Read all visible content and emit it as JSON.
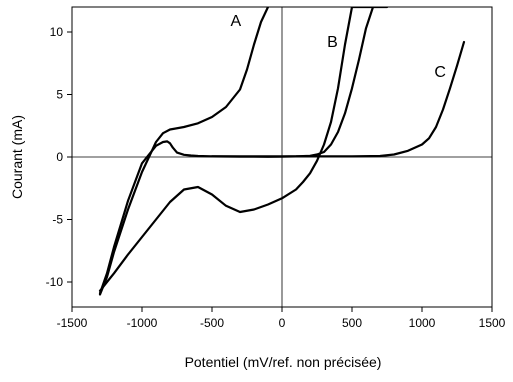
{
  "chart_data": {
    "type": "line",
    "title": "",
    "xlabel": "Potentiel  (mV/ref. non précisée)",
    "ylabel": "Courant  (mA)",
    "xlim": [
      -1500,
      1500
    ],
    "ylim": [
      -12,
      12
    ],
    "xticks": [
      -1500,
      -1000,
      -500,
      0,
      500,
      1000,
      1500
    ],
    "yticks": [
      -10,
      -5,
      0,
      5,
      10
    ],
    "xtick_labels": [
      "-1500",
      "-1000",
      "-500",
      "0",
      "500",
      "1000",
      "1500"
    ],
    "ytick_labels": [
      "-10",
      "-5",
      "0",
      "5",
      "10"
    ],
    "grid": false,
    "zero_lines": true,
    "series_color": "#000000",
    "series": [
      {
        "name": "A",
        "label_position": [
          -330,
          10.5
        ],
        "x": [
          -1300,
          -1250,
          -1200,
          -1100,
          -1000,
          -900,
          -850,
          -800,
          -700,
          -600,
          -500,
          -400,
          -300,
          -250,
          -200,
          -150,
          -100
        ],
        "y": [
          -11.0,
          -9.6,
          -7.6,
          -4.2,
          -1.2,
          1.2,
          1.9,
          2.2,
          2.4,
          2.7,
          3.2,
          4.0,
          5.4,
          7.0,
          9.0,
          10.8,
          12.0
        ]
      },
      {
        "name": "B",
        "label_position": [
          360,
          8.8
        ],
        "x": [
          -1300,
          -1250,
          -1200,
          -1100,
          -1000,
          -900,
          -850,
          -820,
          -800,
          -780,
          -750,
          -700,
          -650,
          -600,
          -500,
          -300,
          -100,
          0,
          100,
          200,
          250,
          300,
          350,
          400,
          450,
          500,
          550,
          600,
          650,
          700,
          750,
          700,
          650,
          600,
          550,
          500,
          450,
          400,
          350,
          300,
          250,
          200,
          150,
          100,
          0,
          -100,
          -200,
          -300,
          -400,
          -500,
          -600,
          -700,
          -800,
          -900,
          -1000,
          -1100,
          -1200,
          -1250,
          -1300
        ],
        "y": [
          -10.9,
          -9.3,
          -7.2,
          -3.5,
          -0.5,
          0.9,
          1.2,
          1.25,
          1.1,
          0.75,
          0.35,
          0.18,
          0.12,
          0.08,
          0.05,
          0.03,
          0.02,
          0.03,
          0.05,
          0.1,
          0.2,
          0.4,
          1.0,
          2.0,
          3.5,
          5.5,
          7.8,
          10.3,
          12.0,
          12.0,
          12.0,
          12.0,
          12.0,
          12.0,
          12.0,
          12.0,
          9.0,
          5.5,
          2.8,
          1.0,
          -0.3,
          -1.3,
          -2.0,
          -2.6,
          -3.3,
          -3.8,
          -4.2,
          -4.4,
          -3.9,
          -3.0,
          -2.4,
          -2.6,
          -3.6,
          -5.0,
          -6.4,
          -7.8,
          -9.3,
          -10.0,
          -10.7
        ]
      },
      {
        "name": "C",
        "label_position": [
          1130,
          6.4
        ],
        "x": [
          -500,
          0,
          500,
          700,
          800,
          900,
          1000,
          1050,
          1100,
          1150,
          1200,
          1250,
          1300
        ],
        "y": [
          0.05,
          0.05,
          0.05,
          0.08,
          0.2,
          0.5,
          1.0,
          1.5,
          2.4,
          3.8,
          5.5,
          7.3,
          9.2
        ]
      }
    ]
  }
}
